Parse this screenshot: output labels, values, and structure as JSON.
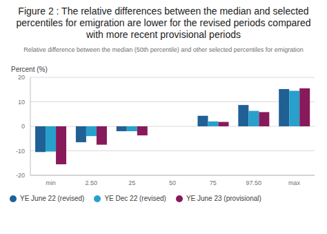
{
  "chart_data": {
    "type": "bar",
    "title": "Figure 2 : The relative differences between the median and selected percentiles for emigration are lower for the revised periods compared with more recent provisional periods",
    "subtitle": "Relative difference between the median (50th percentile) and other selected percentiles for emigration",
    "y_label": "Percent (%)",
    "categories": [
      "min",
      "2.50",
      "25",
      "50",
      "75",
      "97.50",
      "max"
    ],
    "series": [
      {
        "name": "YE June 22 (revised)",
        "color": "#206095",
        "values": [
          -10.5,
          -6.5,
          -2,
          0,
          4.3,
          8.7,
          15.2
        ]
      },
      {
        "name": "YE Dec 22 (revised)",
        "color": "#27a0cc",
        "values": [
          -10.3,
          -4,
          -2,
          0,
          2,
          6.3,
          14.5
        ]
      },
      {
        "name": "YE June 23 (provisional)",
        "color": "#871a5b",
        "values": [
          -15.5,
          -7.5,
          -3.7,
          0,
          1.8,
          5.8,
          15.5
        ]
      }
    ],
    "ylim": [
      -20,
      20
    ],
    "yticks": [
      -20,
      -10,
      0,
      10,
      20
    ],
    "grid": true,
    "legend": "bottom-left"
  }
}
